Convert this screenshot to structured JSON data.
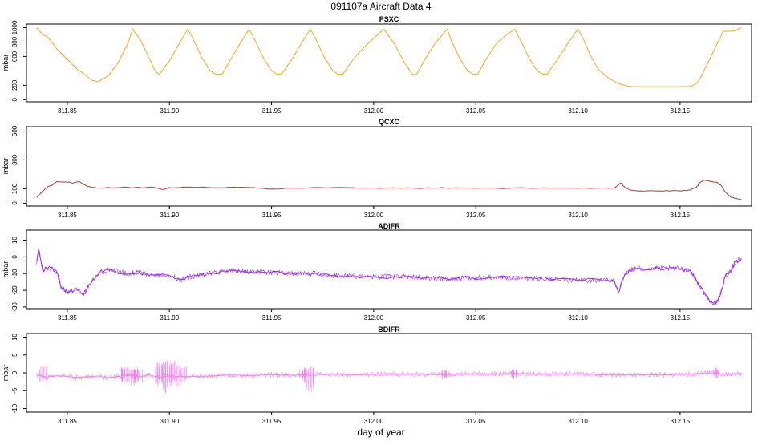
{
  "figure": {
    "title": "091107a   Aircraft Data 4",
    "xlabel": "day of year"
  },
  "chart_data": [
    {
      "type": "line",
      "title": "PSXC",
      "ylabel": "mbar",
      "color": "#f5a623",
      "xlim": [
        311.83,
        312.185
      ],
      "ylim": [
        -30,
        1050
      ],
      "xticks": [
        "311.85",
        "311.90",
        "311.95",
        "312.00",
        "312.05",
        "312.10",
        "312.15"
      ],
      "yticks": [
        0,
        200,
        600,
        800,
        1000
      ],
      "series": [
        {
          "x": [
            311.835,
            311.838,
            311.84,
            311.843,
            311.845,
            311.85,
            311.855,
            311.858,
            311.862,
            311.865,
            311.87,
            311.875,
            311.88,
            311.882,
            311.886,
            311.89,
            311.893,
            311.895,
            311.9,
            311.905,
            311.909,
            311.912,
            311.916,
            311.92,
            311.923,
            311.926,
            311.93,
            311.935,
            311.939,
            311.942,
            311.946,
            311.95,
            311.953,
            311.955,
            311.96,
            311.965,
            311.969,
            311.972,
            311.976,
            311.98,
            311.983,
            311.985,
            311.99,
            311.995,
            312.0,
            312.005,
            312.01,
            312.015,
            312.019,
            312.021,
            312.025,
            312.03,
            312.036,
            312.038,
            312.042,
            312.046,
            312.049,
            312.051,
            312.055,
            312.06,
            312.065,
            312.069,
            312.072,
            312.076,
            312.08,
            312.083,
            312.085,
            312.09,
            312.095,
            312.1,
            312.103,
            312.106,
            312.11,
            312.115,
            312.12,
            312.125,
            312.128,
            312.14,
            312.15,
            312.155,
            312.158,
            312.16,
            312.162,
            312.166,
            312.17,
            312.171,
            312.175,
            312.177,
            312.18
          ],
          "y": [
            1000,
            900,
            880,
            780,
            700,
            560,
            420,
            360,
            270,
            250,
            330,
            520,
            800,
            980,
            820,
            580,
            400,
            350,
            540,
            790,
            980,
            820,
            580,
            400,
            350,
            360,
            560,
            800,
            980,
            820,
            580,
            400,
            350,
            360,
            560,
            800,
            980,
            820,
            580,
            400,
            350,
            360,
            560,
            720,
            850,
            980,
            780,
            520,
            350,
            350,
            560,
            780,
            980,
            820,
            580,
            400,
            350,
            360,
            560,
            780,
            900,
            980,
            820,
            580,
            400,
            350,
            360,
            560,
            780,
            980,
            820,
            620,
            420,
            300,
            220,
            185,
            180,
            180,
            180,
            185,
            220,
            300,
            420,
            650,
            880,
            950,
            950,
            960,
            1000
          ]
        }
      ]
    },
    {
      "type": "line",
      "title": "QCXC",
      "ylabel": "mbar",
      "color": "#b03a3a",
      "xlim": [
        311.83,
        312.185
      ],
      "ylim": [
        -20,
        530
      ],
      "xticks": [
        "311.85",
        "311.90",
        "311.95",
        "312.00",
        "312.05",
        "312.10",
        "312.15"
      ],
      "yticks": [
        0,
        100,
        300,
        500
      ],
      "series": [
        {
          "x": [
            311.835,
            311.837,
            311.84,
            311.843,
            311.845,
            311.85,
            311.853,
            311.856,
            311.86,
            311.865,
            311.875,
            311.885,
            311.893,
            311.897,
            311.9,
            311.91,
            311.92,
            311.93,
            311.94,
            311.95,
            311.96,
            311.98,
            312.0,
            312.02,
            312.04,
            312.06,
            312.08,
            312.1,
            312.118,
            312.121,
            312.123,
            312.126,
            312.13,
            312.14,
            312.15,
            312.155,
            312.158,
            312.16,
            312.162,
            312.165,
            312.168,
            312.17,
            312.172,
            312.175,
            312.18
          ],
          "y": [
            40,
            70,
            110,
            130,
            150,
            145,
            140,
            150,
            115,
            105,
            108,
            110,
            108,
            95,
            108,
            112,
            108,
            110,
            108,
            98,
            105,
            108,
            105,
            104,
            106,
            104,
            104,
            104,
            105,
            140,
            110,
            90,
            85,
            85,
            85,
            90,
            110,
            145,
            160,
            150,
            145,
            125,
            80,
            40,
            25
          ]
        }
      ]
    },
    {
      "type": "line",
      "title": "ADIFR",
      "ylabel": "mbar",
      "color": "#9a30e6",
      "xlim": [
        311.83,
        312.185
      ],
      "ylim": [
        -31,
        16
      ],
      "xticks": [
        "311.85",
        "311.90",
        "311.95",
        "312.00",
        "312.05",
        "312.10",
        "312.15"
      ],
      "yticks": [
        -30,
        -20,
        -10,
        0,
        10
      ],
      "series": [
        {
          "x": [
            311.835,
            311.836,
            311.837,
            311.838,
            311.84,
            311.843,
            311.845,
            311.847,
            311.85,
            311.855,
            311.858,
            311.862,
            311.866,
            311.87,
            311.88,
            311.885,
            311.89,
            311.9,
            311.905,
            311.91,
            311.92,
            311.93,
            311.94,
            311.95,
            311.96,
            311.97,
            311.98,
            312.0,
            312.02,
            312.04,
            312.06,
            312.08,
            312.1,
            312.115,
            312.118,
            312.12,
            312.122,
            312.125,
            312.128,
            312.14,
            312.15,
            312.155,
            312.158,
            312.162,
            312.165,
            312.168,
            312.17,
            312.172,
            312.175,
            312.177,
            312.18
          ],
          "y": [
            -3,
            5,
            -2,
            -8,
            -7,
            -7,
            -10,
            -18,
            -21,
            -20,
            -22,
            -15,
            -9,
            -8,
            -10,
            -9,
            -11,
            -11,
            -14,
            -12,
            -10,
            -8,
            -9,
            -9,
            -10,
            -10,
            -11,
            -12,
            -12,
            -13,
            -12,
            -13,
            -14,
            -14,
            -15,
            -21,
            -13,
            -8,
            -7,
            -7,
            -7,
            -8,
            -14,
            -22,
            -27,
            -27,
            -22,
            -12,
            -8,
            -3,
            -1
          ]
        }
      ]
    },
    {
      "type": "line",
      "title": "BDIFR",
      "ylabel": "mbar",
      "color": "#ee82ee",
      "xlim": [
        311.83,
        312.185
      ],
      "ylim": [
        -11,
        11
      ],
      "xticks": [
        "311.85",
        "311.90",
        "311.95",
        "312.00",
        "312.05",
        "312.10",
        "312.15"
      ],
      "yticks": [
        -10,
        -5,
        0,
        5,
        10
      ],
      "series": [
        {
          "x": [
            311.835,
            311.84,
            311.845,
            311.85,
            311.855,
            311.86,
            311.865,
            311.87,
            311.875,
            311.88,
            311.885,
            311.89,
            311.895,
            311.9,
            311.905,
            311.91,
            311.92,
            311.93,
            311.94,
            311.95,
            311.96,
            311.965,
            311.97,
            311.975,
            311.98,
            311.99,
            312.0,
            312.01,
            312.02,
            312.03,
            312.04,
            312.05,
            312.06,
            312.07,
            312.08,
            312.09,
            312.1,
            312.11,
            312.12,
            312.13,
            312.14,
            312.15,
            312.16,
            312.165,
            312.17,
            312.175,
            312.18
          ],
          "y": [
            -0.5,
            -1.2,
            -0.8,
            -1.0,
            -1.3,
            -1.1,
            -0.9,
            -1.4,
            -1.0,
            -0.5,
            -1.2,
            -0.6,
            -1.3,
            -0.8,
            -1.1,
            -1.0,
            -0.9,
            -0.6,
            -0.8,
            -0.5,
            -0.7,
            -0.6,
            -0.3,
            -0.5,
            -0.4,
            -0.5,
            -0.4,
            -0.3,
            -0.4,
            -0.5,
            -0.4,
            -0.3,
            -0.3,
            -0.2,
            -0.3,
            -0.4,
            -0.3,
            -0.5,
            -0.6,
            -0.5,
            -0.6,
            -0.4,
            -0.2,
            0.0,
            -0.3,
            -0.4,
            -0.1
          ]
        }
      ],
      "noise_peaks": [
        {
          "x": 311.838,
          "lo": -4,
          "hi": 2
        },
        {
          "x": 311.878,
          "lo": -3,
          "hi": 2
        },
        {
          "x": 311.881,
          "lo": -4,
          "hi": 1.5
        },
        {
          "x": 311.885,
          "lo": -3,
          "hi": 1.5
        },
        {
          "x": 311.895,
          "lo": -4,
          "hi": 3
        },
        {
          "x": 311.899,
          "lo": -6,
          "hi": 3.5
        },
        {
          "x": 311.903,
          "lo": -4,
          "hi": 3.5
        },
        {
          "x": 311.907,
          "lo": -3,
          "hi": 2
        },
        {
          "x": 311.965,
          "lo": -3,
          "hi": 1.5
        },
        {
          "x": 311.969,
          "lo": -6,
          "hi": 2
        },
        {
          "x": 312.035,
          "lo": -2,
          "hi": 1
        },
        {
          "x": 312.068,
          "lo": -2,
          "hi": 1
        },
        {
          "x": 312.168,
          "lo": -1.5,
          "hi": 1.5
        }
      ]
    }
  ]
}
